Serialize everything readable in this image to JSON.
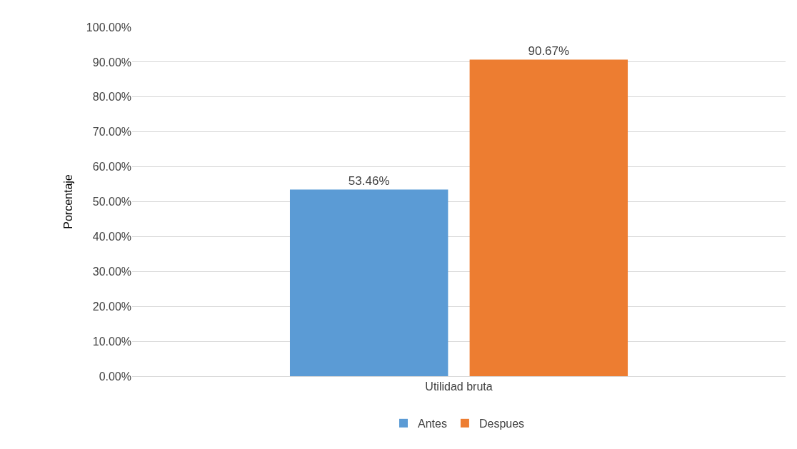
{
  "chart_data": {
    "type": "bar",
    "ylabel": "Porcentaje",
    "categories": [
      "Utilidad bruta"
    ],
    "series": [
      {
        "name": "Antes",
        "color": "#5b9bd5",
        "values": [
          53.46
        ],
        "value_labels": [
          "53.46%"
        ]
      },
      {
        "name": "Despues",
        "color": "#ed7d31",
        "values": [
          90.67
        ],
        "value_labels": [
          "90.67%"
        ]
      }
    ],
    "ylim": [
      0,
      100
    ],
    "yticks": [
      {
        "value": 0,
        "label": "0.00%"
      },
      {
        "value": 10,
        "label": "10.00%"
      },
      {
        "value": 20,
        "label": "20.00%"
      },
      {
        "value": 30,
        "label": "30.00%"
      },
      {
        "value": 40,
        "label": "40.00%"
      },
      {
        "value": 50,
        "label": "50.00%"
      },
      {
        "value": 60,
        "label": "60.00%"
      },
      {
        "value": 70,
        "label": "70.00%"
      },
      {
        "value": 80,
        "label": "80.00%"
      },
      {
        "value": 90,
        "label": "90.00%"
      },
      {
        "value": 100,
        "label": "100.00%"
      }
    ],
    "grid": "y",
    "legend": "bottom"
  }
}
